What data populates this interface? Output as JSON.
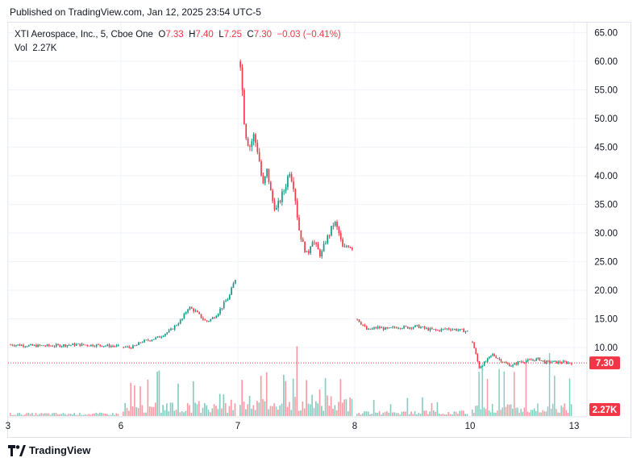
{
  "header": {
    "published": "Published on TradingView.com, Jan 12, 2025 23:54 UTC-5"
  },
  "legend": {
    "symbol": "XTI Aerospace, Inc., 5, Cboe One",
    "open_label": "O",
    "open": "7.33",
    "high_label": "H",
    "high": "7.40",
    "low_label": "L",
    "low": "7.25",
    "close_label": "C",
    "close": "7.30",
    "change": "−0.03 (−0.41%)",
    "vol_label": "Vol",
    "vol": "2.27K"
  },
  "footer": {
    "brand": "TradingView"
  },
  "colors": {
    "up": "#089981",
    "down": "#f23645",
    "grid": "#f0f3fa",
    "text": "#131722"
  },
  "chart_data": {
    "type": "candlestick",
    "title": "XTI Aerospace, Inc., 5, Cboe One",
    "yticks": [
      "10.00",
      "15.00",
      "20.00",
      "25.00",
      "30.00",
      "35.00",
      "40.00",
      "45.00",
      "50.00",
      "55.00",
      "60.00",
      "65.00"
    ],
    "ylim": [
      0,
      67.5
    ],
    "xticks": [
      "3",
      "6",
      "7",
      "8",
      "10",
      "13"
    ],
    "last_price": "7.30",
    "last_volume": "2.27K",
    "last_price_value": 7.3,
    "segments": [
      {
        "session": "3-6",
        "path": [
          [
            10.5,
            10.3
          ],
          [
            10.3,
            10.5
          ],
          [
            10.4,
            10.2
          ]
        ],
        "bars": 60
      },
      {
        "session": "6-7",
        "path": [
          [
            10.1,
            10.0
          ],
          [
            10.2,
            11.0
          ],
          [
            11.2,
            11.5
          ],
          [
            11.8,
            12.4
          ],
          [
            13.0,
            14.0
          ],
          [
            15.0,
            17.0
          ],
          [
            16.5,
            15.5
          ],
          [
            14.5,
            15.0
          ],
          [
            16.0,
            17.5
          ],
          [
            19.0,
            22.0
          ]
        ],
        "bars": 60
      },
      {
        "session": "7-8",
        "path": [
          [
            60.0,
            48.0
          ],
          [
            45.0,
            47.0
          ],
          [
            44.0,
            38.0
          ],
          [
            41.0,
            36.0
          ],
          [
            34.0,
            36.0
          ],
          [
            38.0,
            41.0
          ],
          [
            38.0,
            31.0
          ],
          [
            28.0,
            26.0
          ],
          [
            29.0,
            27.5
          ],
          [
            26.0,
            28.5
          ],
          [
            30.0,
            32.0
          ],
          [
            30.0,
            27.0
          ],
          [
            28.0,
            27.5
          ]
        ],
        "bars": 60
      },
      {
        "session": "8-10",
        "path": [
          [
            15.0,
            13.0
          ],
          [
            13.5,
            13.2
          ],
          [
            13.6,
            13.5
          ],
          [
            13.7,
            13.2
          ],
          [
            13.0,
            13.3
          ],
          [
            13.1,
            12.8
          ]
        ],
        "bars": 60
      },
      {
        "session": "10-13",
        "path": [
          [
            11.0,
            6.5
          ],
          [
            7.5,
            8.8
          ],
          [
            8.0,
            7.2
          ],
          [
            6.8,
            7.5
          ],
          [
            7.6,
            7.8
          ],
          [
            8.0,
            7.4
          ],
          [
            7.5,
            7.4
          ],
          [
            7.4,
            7.3
          ]
        ],
        "bars": 60
      }
    ],
    "volume": {
      "max": 13000,
      "profile": [
        {
          "session": "3-6",
          "level": 0.03
        },
        {
          "session": "6-7",
          "level": 0.12,
          "peaks": [
            0.25,
            0.42,
            0.55,
            0.46
          ]
        },
        {
          "session": "7-8",
          "level": 0.18,
          "peaks": [
            0.95,
            0.62,
            0.48,
            0.44,
            0.3
          ]
        },
        {
          "session": "8-10",
          "level": 0.05,
          "peaks": [
            0.18,
            0.22
          ]
        },
        {
          "session": "10-13",
          "level": 0.12,
          "peaks": [
            1.0,
            0.82,
            0.55,
            0.6,
            0.45
          ]
        }
      ]
    }
  }
}
